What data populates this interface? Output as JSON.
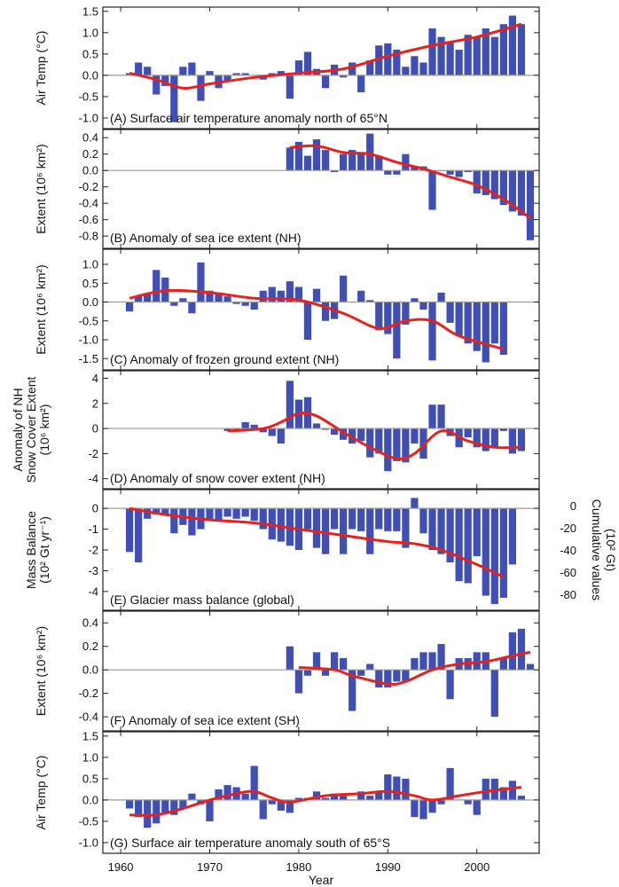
{
  "chart_data": {
    "type": "bar",
    "xlabel": "Year",
    "x_ticks": [
      1960,
      1970,
      1980,
      1990,
      2000
    ],
    "xlim": [
      1958,
      2007
    ],
    "bar_color": "#3f4fb5",
    "trend_color": "#e8211b",
    "panels": [
      {
        "id": "A",
        "label": "(A) Surface air temperature anomaly north of 65°N",
        "ylabel": [
          "Air Temp (°C)"
        ],
        "ylim": [
          -1.25,
          1.6
        ],
        "yticks": [
          -1.0,
          -0.5,
          0.0,
          0.5,
          1.0,
          1.5
        ],
        "tick_labels": [
          "-1.0",
          "-0.5",
          "0.0",
          "0.5",
          "1.0",
          "1.5"
        ],
        "years": [
          1961,
          1962,
          1963,
          1964,
          1965,
          1966,
          1967,
          1968,
          1969,
          1970,
          1971,
          1972,
          1973,
          1974,
          1975,
          1976,
          1977,
          1978,
          1979,
          1980,
          1981,
          1982,
          1983,
          1984,
          1985,
          1986,
          1987,
          1988,
          1989,
          1990,
          1991,
          1992,
          1993,
          1994,
          1995,
          1996,
          1997,
          1998,
          1999,
          2000,
          2001,
          2002,
          2003,
          2004,
          2005
        ],
        "values": [
          0.05,
          0.3,
          0.2,
          -0.45,
          -0.25,
          -1.1,
          0.2,
          0.3,
          -0.6,
          0.1,
          -0.3,
          -0.15,
          0.05,
          0.05,
          0.0,
          -0.1,
          0.05,
          0.1,
          -0.55,
          0.35,
          0.55,
          0.15,
          -0.3,
          0.25,
          -0.05,
          0.3,
          -0.4,
          0.35,
          0.7,
          0.75,
          0.6,
          0.2,
          0.45,
          0.3,
          1.1,
          0.9,
          0.8,
          0.6,
          0.95,
          0.9,
          1.1,
          0.9,
          1.2,
          1.4,
          1.2
        ],
        "trend": [
          [
            1961,
            0.05
          ],
          [
            1964,
            -0.1
          ],
          [
            1967,
            -0.3
          ],
          [
            1970,
            -0.2
          ],
          [
            1975,
            -0.05
          ],
          [
            1980,
            0.05
          ],
          [
            1985,
            0.15
          ],
          [
            1990,
            0.45
          ],
          [
            1995,
            0.7
          ],
          [
            2000,
            0.9
          ],
          [
            2005,
            1.2
          ]
        ]
      },
      {
        "id": "B",
        "label": "(B) Anomaly of sea ice extent (NH)",
        "ylabel": [
          "Extent (10⁶ km²)"
        ],
        "ylim": [
          -0.95,
          0.5
        ],
        "yticks": [
          -0.8,
          -0.6,
          -0.4,
          -0.2,
          0.0,
          0.2,
          0.4
        ],
        "tick_labels": [
          "-0.8",
          "-0.6",
          "-0.4",
          "-0.2",
          "0.0",
          "0.2",
          "0.4"
        ],
        "years": [
          1979,
          1980,
          1981,
          1982,
          1983,
          1984,
          1985,
          1986,
          1987,
          1988,
          1989,
          1990,
          1991,
          1992,
          1993,
          1994,
          1995,
          1996,
          1997,
          1998,
          1999,
          2000,
          2001,
          2002,
          2003,
          2004,
          2005,
          2006
        ],
        "values": [
          0.28,
          0.35,
          0.18,
          0.38,
          0.25,
          -0.02,
          0.2,
          0.25,
          0.2,
          0.45,
          0.18,
          -0.05,
          -0.05,
          0.2,
          0.05,
          0.05,
          -0.48,
          0.0,
          -0.05,
          -0.08,
          -0.02,
          -0.28,
          -0.3,
          -0.35,
          -0.42,
          -0.5,
          -0.55,
          -0.85
        ],
        "trend": [
          [
            1979,
            0.28
          ],
          [
            1982,
            0.3
          ],
          [
            1985,
            0.22
          ],
          [
            1988,
            0.2
          ],
          [
            1991,
            0.1
          ],
          [
            1994,
            0.02
          ],
          [
            1997,
            -0.08
          ],
          [
            2000,
            -0.18
          ],
          [
            2003,
            -0.35
          ],
          [
            2006,
            -0.58
          ]
        ]
      },
      {
        "id": "C",
        "label": "(C) Anomaly of frozen ground extent (NH)",
        "ylabel": [
          "Extent (10⁶ km²)"
        ],
        "ylim": [
          -1.8,
          1.4
        ],
        "yticks": [
          -1.5,
          -1.0,
          -0.5,
          0.0,
          0.5,
          1.0
        ],
        "tick_labels": [
          "-1.5",
          "-1.0",
          "-0.5",
          "0.0",
          "0.5",
          "1.0"
        ],
        "years": [
          1961,
          1962,
          1963,
          1964,
          1965,
          1966,
          1967,
          1968,
          1969,
          1970,
          1971,
          1972,
          1973,
          1974,
          1975,
          1976,
          1977,
          1978,
          1979,
          1980,
          1981,
          1982,
          1983,
          1984,
          1985,
          1986,
          1987,
          1988,
          1989,
          1990,
          1991,
          1992,
          1993,
          1994,
          1995,
          1996,
          1997,
          1998,
          1999,
          2000,
          2001,
          2002,
          2003
        ],
        "values": [
          -0.25,
          0.15,
          0.2,
          0.85,
          0.65,
          -0.1,
          0.1,
          -0.3,
          1.05,
          0.3,
          0.2,
          0.15,
          -0.05,
          -0.1,
          -0.2,
          0.3,
          0.4,
          0.3,
          0.55,
          0.4,
          -1.0,
          0.35,
          -0.5,
          -0.45,
          0.7,
          0.0,
          0.3,
          0.05,
          -0.75,
          -0.85,
          -1.5,
          -0.6,
          0.1,
          -0.2,
          -1.55,
          0.25,
          -0.55,
          -0.9,
          -1.1,
          -1.3,
          -1.6,
          -1.1,
          -1.4
        ],
        "trend": [
          [
            1961,
            0.1
          ],
          [
            1965,
            0.3
          ],
          [
            1970,
            0.25
          ],
          [
            1975,
            0.1
          ],
          [
            1980,
            0.05
          ],
          [
            1985,
            -0.3
          ],
          [
            1989,
            -0.7
          ],
          [
            1992,
            -0.5
          ],
          [
            1995,
            -0.5
          ],
          [
            1998,
            -0.9
          ],
          [
            2003,
            -1.25
          ]
        ]
      },
      {
        "id": "D",
        "label": "(D) Anomaly of snow cover extent (NH)",
        "ylabel": [
          "Anomaly of NH",
          "Snow Cover Extent",
          "(10⁶ km²)"
        ],
        "ylim": [
          -4.8,
          4.6
        ],
        "yticks": [
          -4,
          -2,
          0,
          2,
          4
        ],
        "tick_labels": [
          "-4",
          "-2",
          "0",
          "2",
          "4"
        ],
        "years": [
          1972,
          1973,
          1974,
          1975,
          1976,
          1977,
          1978,
          1979,
          1980,
          1981,
          1982,
          1983,
          1984,
          1985,
          1986,
          1987,
          1988,
          1989,
          1990,
          1991,
          1992,
          1993,
          1994,
          1995,
          1996,
          1997,
          1998,
          1999,
          2000,
          2001,
          2002,
          2003,
          2004,
          2005
        ],
        "values": [
          -0.2,
          -0.1,
          0.5,
          0.3,
          -0.3,
          -0.6,
          -1.2,
          3.8,
          2.3,
          2.5,
          0.4,
          -0.1,
          -0.5,
          -0.9,
          -1.2,
          -1.0,
          -2.3,
          -2.0,
          -3.4,
          -2.6,
          -2.7,
          -1.2,
          -2.4,
          1.9,
          1.9,
          -0.6,
          -1.5,
          -0.7,
          -1.5,
          -1.8,
          -1.5,
          -0.2,
          -2.0,
          -1.8
        ],
        "trend": [
          [
            1972,
            -0.2
          ],
          [
            1976,
            0.0
          ],
          [
            1978,
            0.5
          ],
          [
            1980,
            1.2
          ],
          [
            1982,
            1.0
          ],
          [
            1985,
            -0.3
          ],
          [
            1988,
            -1.5
          ],
          [
            1991,
            -2.4
          ],
          [
            1993,
            -2.0
          ],
          [
            1996,
            -0.2
          ],
          [
            1999,
            -1.0
          ],
          [
            2002,
            -1.5
          ],
          [
            2005,
            -1.5
          ]
        ]
      },
      {
        "id": "E",
        "label": "(E) Glacier mass balance (global)",
        "ylabel": [
          "Mass Balance",
          "(10² Gt yr⁻¹)"
        ],
        "ylabel_right": [
          "Cumulative values",
          "(10² Gt)"
        ],
        "ylim": [
          -4.9,
          0.9
        ],
        "yticks": [
          -4,
          -3,
          -2,
          -1,
          0
        ],
        "tick_labels": [
          "-4",
          "-3",
          "-2",
          "-1",
          "0"
        ],
        "right_ylim": [
          -94,
          15
        ],
        "right_yticks": [
          0,
          -20,
          -40,
          -60,
          -80
        ],
        "right_tick_labels": [
          "0",
          "-20",
          "-40",
          "-60",
          "-80"
        ],
        "years": [
          1961,
          1962,
          1963,
          1964,
          1965,
          1966,
          1967,
          1968,
          1969,
          1970,
          1971,
          1972,
          1973,
          1974,
          1975,
          1976,
          1977,
          1978,
          1979,
          1980,
          1981,
          1982,
          1983,
          1984,
          1985,
          1986,
          1987,
          1988,
          1989,
          1990,
          1991,
          1992,
          1993,
          1994,
          1995,
          1996,
          1997,
          1998,
          1999,
          2000,
          2001,
          2002,
          2003,
          2004
        ],
        "values": [
          -2.1,
          -2.6,
          -0.5,
          -0.3,
          -0.3,
          -1.2,
          -0.8,
          -1.3,
          -1.0,
          -0.5,
          -0.6,
          -0.4,
          -0.5,
          -0.4,
          -0.6,
          -1.0,
          -1.5,
          -1.6,
          -1.8,
          -2.0,
          -1.0,
          -1.9,
          -2.2,
          -1.0,
          -2.2,
          -1.0,
          -1.1,
          -2.2,
          -1.0,
          -1.1,
          -1.1,
          -1.9,
          0.5,
          -1.2,
          -2.0,
          -2.2,
          -2.6,
          -3.5,
          -3.6,
          -2.3,
          -4.2,
          -4.6,
          -4.3,
          -2.7
        ],
        "trend": [
          [
            1961,
            0.0
          ],
          [
            1965,
            -0.3
          ],
          [
            1970,
            -0.55
          ],
          [
            1975,
            -0.7
          ],
          [
            1980,
            -1.0
          ],
          [
            1985,
            -1.3
          ],
          [
            1990,
            -1.6
          ],
          [
            1993,
            -1.7
          ],
          [
            1996,
            -2.0
          ],
          [
            2000,
            -2.7
          ],
          [
            2003,
            -3.3
          ]
        ]
      },
      {
        "id": "F",
        "label": "(F) Anomaly of sea ice extent (SH)",
        "ylabel": [
          "Extent (10⁶ km²)"
        ],
        "ylim": [
          -0.52,
          0.5
        ],
        "yticks": [
          -0.4,
          -0.2,
          0.0,
          0.2,
          0.4
        ],
        "tick_labels": [
          "-0.4",
          "-0.2",
          "0.0",
          "0.2",
          "0.4"
        ],
        "years": [
          1979,
          1980,
          1981,
          1982,
          1983,
          1984,
          1985,
          1986,
          1987,
          1988,
          1989,
          1990,
          1991,
          1992,
          1993,
          1994,
          1995,
          1996,
          1997,
          1998,
          1999,
          2000,
          2001,
          2002,
          2003,
          2004,
          2005,
          2006
        ],
        "values": [
          0.2,
          -0.2,
          -0.05,
          0.15,
          -0.05,
          0.15,
          0.1,
          -0.35,
          -0.05,
          0.05,
          -0.15,
          -0.15,
          -0.1,
          -0.1,
          0.1,
          0.15,
          0.15,
          0.22,
          -0.25,
          0.1,
          0.1,
          0.15,
          0.15,
          -0.4,
          0.1,
          0.32,
          0.35,
          0.05
        ],
        "trend": [
          [
            1980,
            0.02
          ],
          [
            1984,
            0.0
          ],
          [
            1986,
            -0.05
          ],
          [
            1990,
            -0.12
          ],
          [
            1992,
            -0.1
          ],
          [
            1995,
            0.0
          ],
          [
            1998,
            0.05
          ],
          [
            2001,
            0.07
          ],
          [
            2004,
            0.12
          ],
          [
            2006,
            0.15
          ]
        ]
      },
      {
        "id": "G",
        "label": "(G) Surface air temperature anomaly south of 65°S",
        "ylabel": [
          "Air Temp (°C)"
        ],
        "ylim": [
          -1.25,
          1.6
        ],
        "yticks": [
          -1.0,
          -0.5,
          0.0,
          0.5,
          1.0,
          1.5
        ],
        "tick_labels": [
          "-1.0",
          "-0.5",
          "0.0",
          "0.5",
          "1.0",
          "1.5"
        ],
        "years": [
          1961,
          1962,
          1963,
          1964,
          1965,
          1966,
          1967,
          1968,
          1969,
          1970,
          1971,
          1972,
          1973,
          1974,
          1975,
          1976,
          1977,
          1978,
          1979,
          1980,
          1981,
          1982,
          1983,
          1984,
          1985,
          1986,
          1987,
          1988,
          1989,
          1990,
          1991,
          1992,
          1993,
          1994,
          1995,
          1996,
          1997,
          1998,
          1999,
          2000,
          2001,
          2002,
          2003,
          2004,
          2005
        ],
        "values": [
          -0.2,
          -0.4,
          -0.65,
          -0.55,
          -0.3,
          -0.35,
          -0.2,
          0.15,
          -0.1,
          -0.5,
          0.25,
          0.35,
          0.3,
          0.15,
          0.8,
          -0.45,
          -0.1,
          -0.25,
          -0.3,
          0.05,
          0.05,
          0.2,
          0.05,
          0.15,
          0.1,
          0.0,
          0.2,
          0.1,
          0.2,
          0.6,
          0.55,
          0.5,
          -0.4,
          -0.45,
          -0.3,
          -0.1,
          0.75,
          0.0,
          -0.1,
          -0.35,
          0.5,
          0.5,
          0.3,
          0.45,
          0.1
        ],
        "trend": [
          [
            1961,
            -0.35
          ],
          [
            1964,
            -0.35
          ],
          [
            1967,
            -0.2
          ],
          [
            1970,
            0.0
          ],
          [
            1973,
            0.15
          ],
          [
            1975,
            0.2
          ],
          [
            1977,
            0.05
          ],
          [
            1979,
            -0.05
          ],
          [
            1983,
            0.1
          ],
          [
            1987,
            0.15
          ],
          [
            1990,
            0.2
          ],
          [
            1993,
            0.1
          ],
          [
            1995,
            0.0
          ],
          [
            1998,
            0.1
          ],
          [
            2001,
            0.2
          ],
          [
            2005,
            0.3
          ]
        ]
      }
    ]
  }
}
